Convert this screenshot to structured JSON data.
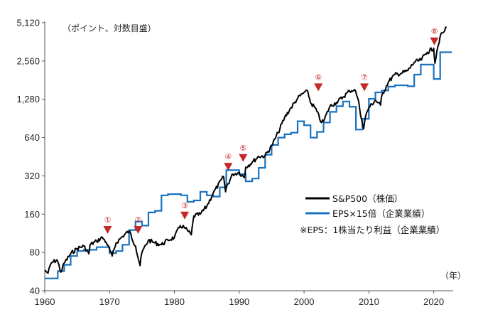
{
  "chart_data": {
    "type": "line",
    "title": "",
    "unit_note": "（ポイント、対数目盛）",
    "x_unit": "（年）",
    "yscale": "log",
    "ylim": [
      40,
      5120
    ],
    "xlim": [
      1960,
      2023
    ],
    "y_ticks": [
      40,
      80,
      160,
      320,
      640,
      1280,
      2560,
      5120
    ],
    "y_tick_labels": [
      "40",
      "80",
      "160",
      "320",
      "640",
      "1,280",
      "2,560",
      "5,120"
    ],
    "x_ticks": [
      1960,
      1970,
      1980,
      1990,
      2000,
      2010,
      2020
    ],
    "x_tick_labels": [
      "1960",
      "1970",
      "1980",
      "1990",
      "2000",
      "2010",
      "2020"
    ],
    "series": [
      {
        "name": "S&P500（株価）",
        "color": "#000000",
        "x": [
          1960,
          1960.5,
          1961,
          1961.9,
          1962.5,
          1963,
          1964,
          1965,
          1966,
          1966.8,
          1967,
          1968,
          1968.9,
          1969.5,
          1970.4,
          1971,
          1972,
          1973,
          1974,
          1974.7,
          1975,
          1976,
          1977,
          1978,
          1979,
          1980,
          1980.9,
          1981.5,
          1982.6,
          1983,
          1984,
          1985,
          1986,
          1987.6,
          1987.9,
          1988,
          1989,
          1990,
          1990.8,
          1991,
          1992,
          1993,
          1994,
          1995,
          1996,
          1997,
          1998,
          1999,
          2000,
          2000.6,
          2001,
          2001.7,
          2002.7,
          2003,
          2004,
          2005,
          2006,
          2007,
          2007.8,
          2008.3,
          2008.9,
          2009.2,
          2009.5,
          2010,
          2011,
          2011.8,
          2012,
          2013,
          2014,
          2015,
          2016,
          2017,
          2018,
          2019,
          2020,
          2020.2,
          2020.5,
          2021,
          2021.5,
          2022
        ],
        "values": [
          58,
          55,
          66,
          70,
          56,
          66,
          78,
          86,
          90,
          78,
          92,
          98,
          105,
          96,
          75,
          95,
          107,
          118,
          90,
          63,
          80,
          100,
          95,
          92,
          100,
          105,
          130,
          126,
          110,
          155,
          160,
          185,
          235,
          315,
          240,
          260,
          330,
          340,
          310,
          375,
          410,
          455,
          460,
          550,
          700,
          920,
          1100,
          1300,
          1450,
          1460,
          1200,
          1100,
          840,
          860,
          1130,
          1210,
          1330,
          1490,
          1530,
          1300,
          880,
          750,
          950,
          1100,
          1260,
          1150,
          1380,
          1750,
          2000,
          2050,
          2150,
          2500,
          2600,
          3000,
          3230,
          2460,
          3100,
          4000,
          4300,
          4700
        ]
      },
      {
        "name": "EPS×15倍（企業業績）",
        "color": "#1872c0",
        "x": [
          1960,
          1961,
          1962,
          1963,
          1964,
          1965,
          1966,
          1967,
          1968,
          1969,
          1970,
          1971,
          1972,
          1973,
          1974,
          1975,
          1976,
          1977,
          1978,
          1979,
          1980,
          1981,
          1982,
          1983,
          1984,
          1985,
          1986,
          1987,
          1988,
          1989,
          1990,
          1991,
          1992,
          1993,
          1994,
          1995,
          1996,
          1997,
          1998,
          1999,
          2000,
          2001,
          2002,
          2003,
          2004,
          2005,
          2006,
          2007,
          2008,
          2009,
          2010,
          2011,
          2012,
          2013,
          2014,
          2015,
          2016,
          2017,
          2018,
          2019,
          2020,
          2021,
          2022
        ],
        "values": [
          50,
          50,
          57,
          64,
          75,
          82,
          84,
          84,
          88,
          88,
          79,
          82,
          92,
          120,
          140,
          130,
          165,
          170,
          225,
          230,
          230,
          225,
          200,
          205,
          240,
          225,
          220,
          260,
          355,
          355,
          330,
          290,
          305,
          370,
          470,
          560,
          640,
          680,
          700,
          860,
          800,
          640,
          710,
          840,
          1020,
          1130,
          1230,
          1120,
          740,
          900,
          1290,
          1450,
          1500,
          1610,
          1650,
          1650,
          1620,
          2000,
          2400,
          2400,
          1850,
          3000,
          3000
        ]
      }
    ],
    "events": [
      {
        "label": "①",
        "x": 1969.7,
        "y": 121
      },
      {
        "label": "②",
        "x": 1974.4,
        "y": 121
      },
      {
        "label": "③",
        "x": 1981.6,
        "y": 157
      },
      {
        "label": "④",
        "x": 1988.3,
        "y": 380
      },
      {
        "label": "⑤",
        "x": 1990.6,
        "y": 445
      },
      {
        "label": "⑥",
        "x": 2002.2,
        "y": 1600
      },
      {
        "label": "⑦",
        "x": 2009.3,
        "y": 1600
      },
      {
        "label": "⑧",
        "x": 2020.1,
        "y": 3680
      }
    ],
    "legend": [
      {
        "label": "S&P500（株価）",
        "color": "#000000"
      },
      {
        "label": "EPS×15倍（企業業績）",
        "color": "#1872c0"
      }
    ],
    "footnote": "※EPS：1株当たり利益（企業業績）",
    "legend_position": "center-right",
    "marker_color": "#c62828",
    "label_color": "#c62828",
    "grid": false
  }
}
